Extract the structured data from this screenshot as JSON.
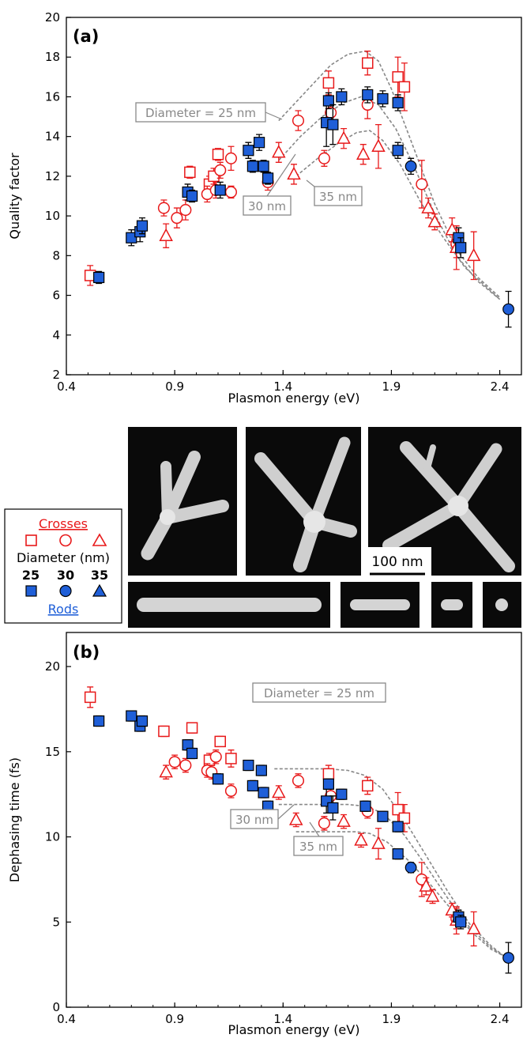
{
  "colors": {
    "cross": "#e8191a",
    "rod": "#1f5fd8",
    "rod_edge": "#000000",
    "model": "#888888"
  },
  "legend": {
    "crosses_label": "Crosses",
    "diameter_label": "Diameter (nm)",
    "d25": "25",
    "d30": "30",
    "d35": "35",
    "rods_label": "Rods"
  },
  "images": {
    "scale_label": "100 nm"
  },
  "chart_data": [
    {
      "type": "scatter",
      "panel": "(a)",
      "xlabel": "Plasmon energy (eV)",
      "ylabel": "Quality factor",
      "xlim": [
        0.4,
        2.5
      ],
      "ylim": [
        2,
        20
      ],
      "xticks": [
        "0.4",
        "0.9",
        "1.4",
        "1.9",
        "2.4"
      ],
      "yticks": [
        "2",
        "4",
        "6",
        "8",
        "10",
        "12",
        "14",
        "16",
        "18",
        "20"
      ],
      "annotations": [
        "Diameter = 25 nm",
        "30 nm",
        "35 nm"
      ],
      "crosses": [
        {
          "shape": "square",
          "points": [
            [
              0.51,
              7.0,
              0.5
            ],
            [
              0.97,
              12.2,
              0.3
            ],
            [
              1.06,
              11.6,
              0.4
            ],
            [
              1.08,
              12.0,
              0.4
            ],
            [
              1.1,
              13.1,
              0.3
            ],
            [
              1.61,
              16.7,
              0.6
            ],
            [
              1.79,
              17.7,
              0.6
            ],
            [
              1.93,
              17.0,
              1.0
            ],
            [
              1.96,
              16.5,
              1.2
            ]
          ]
        },
        {
          "shape": "circle",
          "points": [
            [
              0.85,
              10.4,
              0.4
            ],
            [
              0.91,
              9.9,
              0.5
            ],
            [
              0.95,
              10.3,
              0.5
            ],
            [
              1.05,
              11.1,
              0.4
            ],
            [
              1.09,
              11.3,
              0.4
            ],
            [
              1.11,
              12.3,
              0.4
            ],
            [
              1.16,
              11.2,
              0.3
            ],
            [
              1.16,
              12.9,
              0.6
            ],
            [
              1.33,
              11.7,
              0.4
            ],
            [
              1.47,
              14.8,
              0.5
            ],
            [
              1.59,
              12.9,
              0.4
            ],
            [
              1.62,
              15.2,
              0.7
            ],
            [
              1.79,
              15.6,
              0.7
            ],
            [
              2.04,
              11.6,
              1.2
            ],
            [
              2.2,
              8.6,
              0.7
            ]
          ]
        },
        {
          "shape": "triangle",
          "points": [
            [
              0.86,
              9.0,
              0.6
            ],
            [
              1.38,
              13.2,
              0.5
            ],
            [
              1.45,
              12.1,
              0.5
            ],
            [
              1.68,
              13.9,
              0.5
            ],
            [
              1.77,
              13.1,
              0.5
            ],
            [
              1.84,
              13.5,
              1.1
            ],
            [
              2.07,
              10.4,
              0.5
            ],
            [
              2.1,
              9.7,
              0.4
            ],
            [
              2.18,
              9.3,
              0.6
            ],
            [
              2.2,
              8.4,
              1.1
            ],
            [
              2.28,
              8.0,
              1.2
            ]
          ]
        }
      ],
      "rods": [
        {
          "shape": "square",
          "points": [
            [
              0.55,
              6.9,
              0.3
            ],
            [
              0.7,
              8.9,
              0.4
            ],
            [
              0.74,
              9.2,
              0.5
            ],
            [
              0.75,
              9.5,
              0.4
            ],
            [
              0.96,
              11.2,
              0.4
            ],
            [
              0.98,
              11.0,
              0.3
            ],
            [
              1.11,
              11.3,
              0.4
            ],
            [
              1.24,
              13.3,
              0.4
            ],
            [
              1.26,
              12.5,
              0.3
            ],
            [
              1.29,
              13.7,
              0.4
            ],
            [
              1.31,
              12.5,
              0.3
            ],
            [
              1.33,
              11.9,
              0.3
            ],
            [
              1.6,
              14.7,
              1.2
            ],
            [
              1.61,
              15.8,
              0.4
            ],
            [
              1.63,
              14.6,
              1.0
            ],
            [
              1.67,
              16.0,
              0.4
            ],
            [
              1.79,
              16.1,
              0.4
            ],
            [
              1.86,
              15.9,
              0.4
            ],
            [
              1.93,
              15.7,
              0.4
            ],
            [
              1.93,
              13.3,
              0.4
            ],
            [
              2.21,
              8.9,
              0.5
            ],
            [
              2.22,
              8.4,
              0.5
            ]
          ]
        },
        {
          "shape": "circle",
          "points": [
            [
              1.99,
              12.5,
              0.4
            ],
            [
              2.44,
              5.3,
              0.9
            ]
          ]
        }
      ],
      "model_curves": [
        {
          "label": "Diameter = 25 nm",
          "points": [
            [
              1.38,
              14.8
            ],
            [
              1.5,
              16.2
            ],
            [
              1.62,
              17.6
            ],
            [
              1.7,
              18.15
            ],
            [
              1.78,
              18.3
            ],
            [
              1.84,
              17.8
            ],
            [
              1.9,
              16.4
            ],
            [
              2.0,
              13.5
            ],
            [
              2.1,
              10.6
            ],
            [
              2.2,
              8.3
            ],
            [
              2.3,
              6.9
            ],
            [
              2.4,
              5.9
            ]
          ]
        },
        {
          "label": "30 nm",
          "points": [
            [
              1.38,
              12.8
            ],
            [
              1.48,
              14.0
            ],
            [
              1.58,
              15.0
            ],
            [
              1.68,
              15.7
            ],
            [
              1.76,
              16.0
            ],
            [
              1.84,
              15.6
            ],
            [
              1.92,
              14.4
            ],
            [
              2.0,
              12.6
            ],
            [
              2.1,
              10.1
            ],
            [
              2.2,
              8.0
            ],
            [
              2.3,
              6.7
            ],
            [
              2.4,
              5.8
            ]
          ]
        },
        {
          "label": "35 nm",
          "points": [
            [
              1.46,
              12.0
            ],
            [
              1.56,
              12.9
            ],
            [
              1.66,
              13.7
            ],
            [
              1.74,
              14.2
            ],
            [
              1.8,
              14.3
            ],
            [
              1.86,
              13.8
            ],
            [
              1.94,
              12.6
            ],
            [
              2.04,
              10.6
            ],
            [
              2.14,
              8.9
            ],
            [
              2.24,
              7.4
            ],
            [
              2.34,
              6.4
            ],
            [
              2.4,
              5.8
            ]
          ]
        }
      ]
    },
    {
      "type": "scatter",
      "panel": "(b)",
      "xlabel": "Plasmon energy (eV)",
      "ylabel": "Dephasing time (fs)",
      "xlim": [
        0.4,
        2.5
      ],
      "ylim": [
        0,
        22
      ],
      "xticks": [
        "0.4",
        "0.9",
        "1.4",
        "1.9",
        "2.4"
      ],
      "yticks": [
        "0",
        "5",
        "10",
        "15",
        "20"
      ],
      "annotations": [
        "Diameter = 25 nm",
        "30 nm",
        "35 nm"
      ],
      "crosses": [
        {
          "shape": "square",
          "points": [
            [
              0.51,
              18.2,
              0.6
            ],
            [
              0.85,
              16.2,
              0.3
            ],
            [
              0.98,
              16.4,
              0.3
            ],
            [
              1.06,
              14.5,
              0.4
            ],
            [
              1.11,
              15.6,
              0.3
            ],
            [
              1.16,
              14.6,
              0.5
            ],
            [
              1.61,
              13.7,
              0.5
            ],
            [
              1.79,
              13.0,
              0.5
            ],
            [
              1.93,
              11.6,
              1.0
            ],
            [
              1.96,
              11.1,
              0.8
            ]
          ]
        },
        {
          "shape": "circle",
          "points": [
            [
              0.9,
              14.4,
              0.4
            ],
            [
              0.95,
              14.2,
              0.4
            ],
            [
              1.05,
              13.9,
              0.4
            ],
            [
              1.07,
              13.8,
              0.4
            ],
            [
              1.09,
              14.7,
              0.4
            ],
            [
              1.16,
              12.7,
              0.4
            ],
            [
              1.33,
              11.5,
              0.4
            ],
            [
              1.47,
              13.3,
              0.4
            ],
            [
              1.59,
              10.8,
              0.4
            ],
            [
              1.62,
              12.4,
              0.4
            ],
            [
              1.79,
              11.5,
              0.4
            ],
            [
              2.04,
              7.5,
              1.0
            ],
            [
              2.2,
              5.2,
              0.6
            ]
          ]
        },
        {
          "shape": "triangle",
          "points": [
            [
              0.86,
              13.8,
              0.4
            ],
            [
              1.38,
              12.6,
              0.4
            ],
            [
              1.46,
              11.0,
              0.4
            ],
            [
              1.68,
              10.9,
              0.4
            ],
            [
              1.76,
              9.8,
              0.4
            ],
            [
              1.84,
              9.6,
              0.9
            ],
            [
              2.06,
              7.1,
              0.5
            ],
            [
              2.09,
              6.5,
              0.4
            ],
            [
              2.18,
              5.7,
              0.4
            ],
            [
              2.2,
              5.1,
              0.8
            ],
            [
              2.28,
              4.6,
              1.0
            ]
          ]
        }
      ],
      "rods": [
        {
          "shape": "square",
          "points": [
            [
              0.55,
              16.8,
              0.3
            ],
            [
              0.7,
              17.1,
              0.3
            ],
            [
              0.74,
              16.5,
              0.3
            ],
            [
              0.75,
              16.8,
              0.3
            ],
            [
              0.96,
              15.4,
              0.3
            ],
            [
              0.98,
              14.9,
              0.3
            ],
            [
              1.1,
              13.4,
              0.3
            ],
            [
              1.24,
              14.2,
              0.3
            ],
            [
              1.26,
              13.0,
              0.3
            ],
            [
              1.3,
              13.9,
              0.3
            ],
            [
              1.31,
              12.6,
              0.3
            ],
            [
              1.33,
              11.8,
              0.3
            ],
            [
              1.6,
              12.1,
              0.7
            ],
            [
              1.61,
              13.1,
              0.3
            ],
            [
              1.63,
              11.7,
              0.7
            ],
            [
              1.67,
              12.5,
              0.3
            ],
            [
              1.78,
              11.8,
              0.3
            ],
            [
              1.86,
              11.2,
              0.3
            ],
            [
              1.93,
              10.6,
              0.3
            ],
            [
              1.93,
              9.0,
              0.3
            ],
            [
              2.21,
              5.3,
              0.4
            ],
            [
              2.22,
              5.0,
              0.4
            ]
          ]
        },
        {
          "shape": "circle",
          "points": [
            [
              1.99,
              8.2,
              0.3
            ],
            [
              2.44,
              2.9,
              0.9
            ]
          ]
        }
      ],
      "model_curves": [
        {
          "label": "Diameter = 25 nm",
          "points": [
            [
              1.36,
              14.0
            ],
            [
              1.5,
              14.0
            ],
            [
              1.6,
              14.0
            ],
            [
              1.7,
              13.9
            ],
            [
              1.78,
              13.6
            ],
            [
              1.86,
              12.8
            ],
            [
              1.96,
              11.0
            ],
            [
              2.06,
              8.9
            ],
            [
              2.16,
              6.8
            ],
            [
              2.26,
              4.9
            ],
            [
              2.36,
              3.6
            ],
            [
              2.42,
              3.0
            ]
          ]
        },
        {
          "label": "30 nm",
          "points": [
            [
              1.38,
              11.9
            ],
            [
              1.5,
              11.9
            ],
            [
              1.6,
              11.9
            ],
            [
              1.7,
              11.9
            ],
            [
              1.78,
              11.8
            ],
            [
              1.86,
              11.4
            ],
            [
              1.96,
              10.1
            ],
            [
              2.06,
              8.3
            ],
            [
              2.16,
              6.4
            ],
            [
              2.26,
              4.7
            ],
            [
              2.36,
              3.5
            ],
            [
              2.42,
              3.0
            ]
          ]
        },
        {
          "label": "35 nm",
          "points": [
            [
              1.46,
              10.3
            ],
            [
              1.56,
              10.3
            ],
            [
              1.66,
              10.3
            ],
            [
              1.74,
              10.3
            ],
            [
              1.8,
              10.2
            ],
            [
              1.88,
              9.7
            ],
            [
              1.98,
              8.6
            ],
            [
              2.08,
              7.2
            ],
            [
              2.18,
              5.7
            ],
            [
              2.28,
              4.3
            ],
            [
              2.36,
              3.4
            ],
            [
              2.42,
              3.0
            ]
          ]
        }
      ]
    }
  ]
}
